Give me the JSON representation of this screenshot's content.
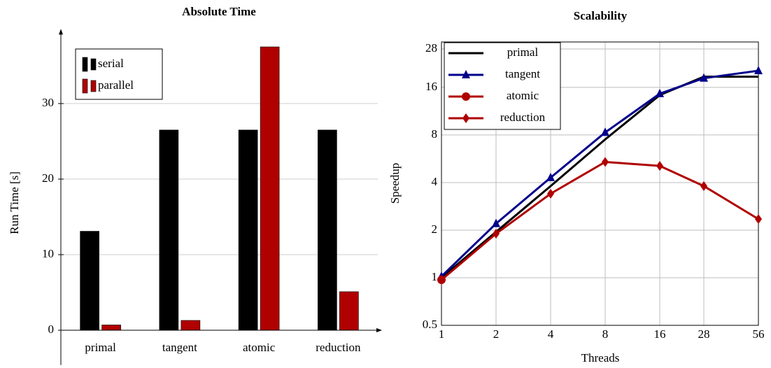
{
  "chart_data": [
    {
      "type": "bar",
      "title": "Absolute Time",
      "y_label": "Run Time [s]",
      "categories": [
        "primal",
        "tangent",
        "atomic",
        "reduction"
      ],
      "series": [
        {
          "name": "serial",
          "color": "#000000",
          "values": [
            13.1,
            26.5,
            26.5,
            26.5
          ]
        },
        {
          "name": "parallel",
          "color": "#b00000",
          "values": [
            0.7,
            1.3,
            37.5,
            5.1
          ]
        }
      ],
      "ylim": [
        -4.6,
        39.5
      ],
      "yticks": [
        0,
        10,
        20,
        30
      ],
      "grid": true,
      "legend": "upper left"
    },
    {
      "type": "line",
      "title": "Scalability",
      "x_label": "Threads",
      "y_label": "Speedup",
      "x": [
        1,
        2,
        4,
        8,
        16,
        28,
        56
      ],
      "series": [
        {
          "name": "primal",
          "color": "#000000",
          "marker": "none",
          "values": [
            1,
            1.95,
            3.8,
            7.5,
            14.3,
            18.7,
            18.7
          ]
        },
        {
          "name": "tangent",
          "color": "#00008b",
          "marker": "triangle",
          "values": [
            1.02,
            2.2,
            4.3,
            8.3,
            14.6,
            18.3,
            20.4
          ]
        },
        {
          "name": "atomic",
          "color": "#b00000",
          "marker": "circle",
          "values": [
            0.97,
            null,
            null,
            null,
            null,
            null,
            null
          ]
        },
        {
          "name": "reduction",
          "color": "#b00000",
          "marker": "diamond",
          "values": [
            0.97,
            1.9,
            3.4,
            5.4,
            5.1,
            3.8,
            2.35
          ]
        }
      ],
      "xscale": "log",
      "yscale": "log",
      "xlim": [
        1,
        56
      ],
      "xticks": [
        1,
        2,
        4,
        8,
        16,
        28,
        56
      ],
      "ylim": [
        0.5,
        31
      ],
      "yticks": [
        0.5,
        1,
        2,
        4,
        8,
        16,
        28
      ],
      "grid": true,
      "legend": "upper left"
    }
  ]
}
